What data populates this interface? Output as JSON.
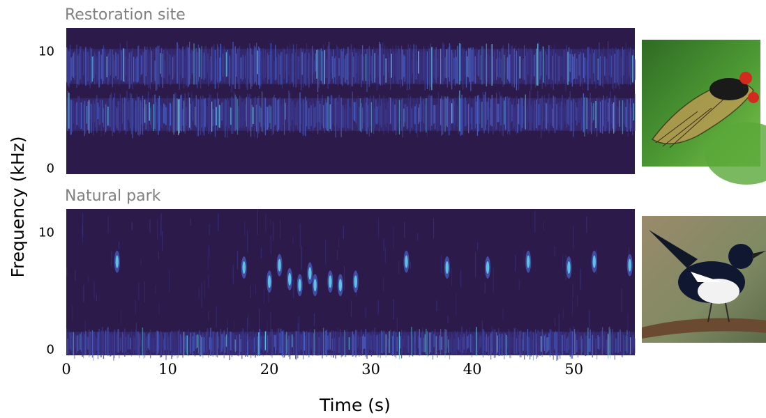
{
  "chart_data": {
    "type": "heatmap",
    "xlabel": "Time (s)",
    "ylabel": "Frequency (kHz)",
    "xlim": [
      0,
      56
    ],
    "ylim": [
      -0.5,
      12
    ],
    "x_ticks": [
      {
        "value": 0,
        "label": "0"
      },
      {
        "value": 10,
        "label": "10"
      },
      {
        "value": 20,
        "label": "20"
      },
      {
        "value": 30,
        "label": "30"
      },
      {
        "value": 40,
        "label": "40"
      },
      {
        "value": 50,
        "label": "50"
      }
    ],
    "y_ticks": [
      {
        "value": 0,
        "label": "0"
      },
      {
        "value": 10,
        "label": "10"
      }
    ],
    "colors": {
      "background": "#2c1a4a",
      "low": "#3c3790",
      "mid": "#4a62cc",
      "high": "#5fd0e8"
    },
    "panels": [
      {
        "title": "Restoration site",
        "thumbnail": "cicada",
        "bands": [
          {
            "label": "upper band",
            "freq_low_khz": 7.2,
            "freq_high_khz": 10.2,
            "t_start": 0,
            "t_end": 56
          },
          {
            "label": "lower band",
            "freq_low_khz": 3.2,
            "freq_high_khz": 6.0,
            "t_start": 0,
            "t_end": 56
          }
        ],
        "calls": []
      },
      {
        "title": "Natural park",
        "thumbnail": "bird",
        "bands": [
          {
            "label": "low-frequency noise",
            "freq_low_khz": -0.5,
            "freq_high_khz": 1.5,
            "t_start": 0,
            "t_end": 56
          }
        ],
        "calls": [
          {
            "t": 5.0,
            "f": 7.5
          },
          {
            "t": 17.5,
            "f": 7.0
          },
          {
            "t": 20.0,
            "f": 5.8
          },
          {
            "t": 21.0,
            "f": 7.2
          },
          {
            "t": 22.0,
            "f": 6.0
          },
          {
            "t": 23.0,
            "f": 5.5
          },
          {
            "t": 24.0,
            "f": 6.5
          },
          {
            "t": 24.5,
            "f": 5.5
          },
          {
            "t": 26.0,
            "f": 5.8
          },
          {
            "t": 27.0,
            "f": 5.5
          },
          {
            "t": 28.5,
            "f": 5.8
          },
          {
            "t": 33.5,
            "f": 7.5
          },
          {
            "t": 37.5,
            "f": 7.0
          },
          {
            "t": 41.5,
            "f": 7.0
          },
          {
            "t": 45.5,
            "f": 7.5
          },
          {
            "t": 49.5,
            "f": 7.0
          },
          {
            "t": 52.0,
            "f": 7.5
          },
          {
            "t": 55.5,
            "f": 7.2
          }
        ]
      }
    ]
  }
}
